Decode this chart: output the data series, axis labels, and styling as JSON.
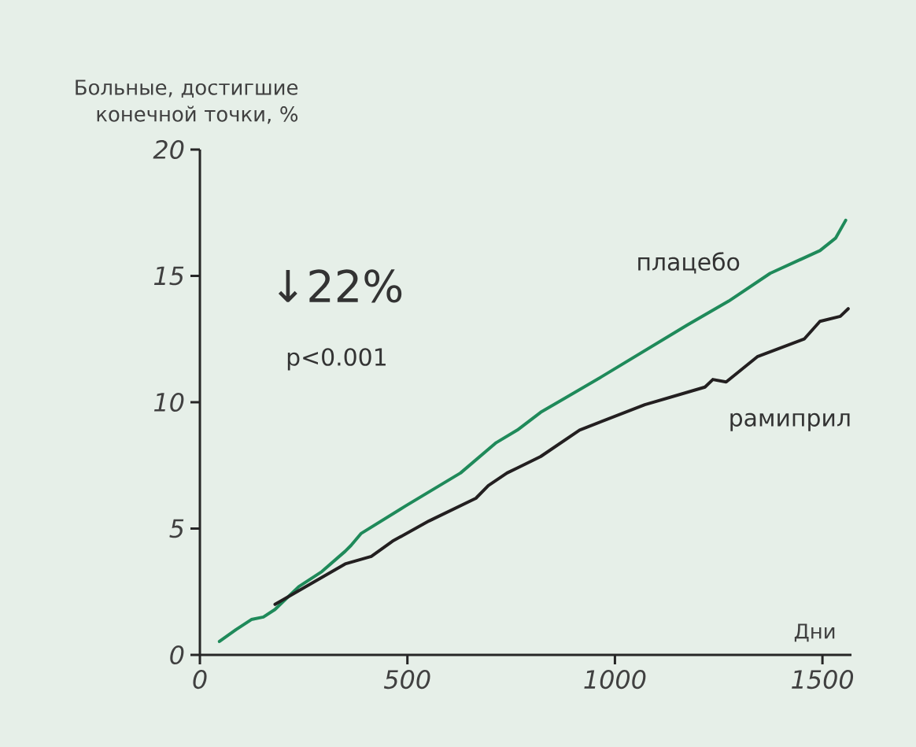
{
  "chart_data": {
    "type": "line",
    "ylabel": "Больные, достигшие конечной точки, %",
    "xlabel": "Дни",
    "annotations": [
      "↓22%",
      "p<0.001"
    ],
    "xlim": [
      0,
      1570
    ],
    "ylim": [
      0,
      20
    ],
    "xticks": [
      0,
      500,
      1000,
      1500
    ],
    "yticks": [
      0,
      5,
      10,
      15,
      20
    ],
    "grid": false,
    "marker": "none",
    "line_style": "solid",
    "series": [
      {
        "name": "плацебо",
        "color": "#1f8a5a",
        "x": [
          47,
          87,
          124,
          153,
          181,
          238,
          294,
          350,
          364,
          388,
          496,
          628,
          714,
          765,
          821,
          967,
          1174,
          1274,
          1374,
          1494,
          1532,
          1556
        ],
        "values": [
          0.53,
          1.0,
          1.4,
          1.5,
          1.8,
          2.7,
          3.3,
          4.1,
          4.33,
          4.8,
          5.9,
          7.2,
          8.4,
          8.9,
          9.6,
          11.0,
          13.05,
          14.0,
          15.1,
          16.0,
          16.5,
          17.2
        ]
      },
      {
        "name": "рамиприл",
        "color": "#231f20",
        "x": [
          181,
          350,
          413,
          464,
          552,
          665,
          695,
          740,
          765,
          821,
          915,
          1072,
          1217,
          1236,
          1268,
          1343,
          1456,
          1494,
          1543,
          1562
        ],
        "values": [
          2.0,
          3.6,
          3.9,
          4.5,
          5.3,
          6.2,
          6.7,
          7.2,
          7.4,
          7.85,
          8.9,
          9.9,
          10.6,
          10.9,
          10.8,
          11.8,
          12.5,
          13.2,
          13.4,
          13.7
        ]
      }
    ]
  }
}
